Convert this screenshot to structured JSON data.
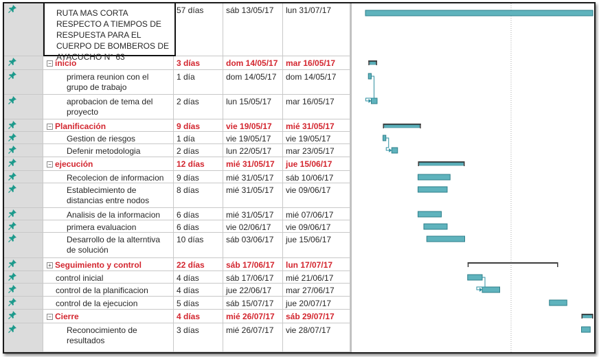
{
  "tasks": [
    {
      "name": "RUTA MAS CORTA RESPECTO A TIEMPOS  DE RESPUESTA  PARA EL CUERPO  DE BOMBEROS DE AYACUCHO N° 63",
      "duration": "57 días",
      "start": "sáb 13/05/17",
      "end": "lun 31/07/17",
      "type": "project",
      "level": 0
    },
    {
      "name": "inicio",
      "duration": "3 días",
      "start": "dom 14/05/17",
      "end": "mar 16/05/17",
      "type": "summary",
      "toggle": "−",
      "level": 0
    },
    {
      "name": "primera reunion con el grupo de trabajo",
      "duration": "1 día",
      "start": "dom 14/05/17",
      "end": "dom 14/05/17",
      "type": "task",
      "level": 1
    },
    {
      "name": "aprobacion de tema del proyecto",
      "duration": "2 días",
      "start": "lun 15/05/17",
      "end": "mar 16/05/17",
      "type": "task",
      "level": 1
    },
    {
      "name": "Planificación",
      "duration": "9 días",
      "start": "vie 19/05/17",
      "end": "mié 31/05/17",
      "type": "summary",
      "toggle": "−",
      "level": 0
    },
    {
      "name": "Gestion de riesgos",
      "duration": "1 día",
      "start": "vie 19/05/17",
      "end": "vie 19/05/17",
      "type": "task",
      "level": 1
    },
    {
      "name": "Defenir metodologia",
      "duration": "2 días",
      "start": "lun 22/05/17",
      "end": "mar 23/05/17",
      "type": "task",
      "level": 1
    },
    {
      "name": "ejecución",
      "duration": "12 días",
      "start": "mié 31/05/17",
      "end": "jue 15/06/17",
      "type": "summary",
      "toggle": "−",
      "level": 0
    },
    {
      "name": "Recolecion de informacion",
      "duration": "9 días",
      "start": "mié 31/05/17",
      "end": "sáb 10/06/17",
      "type": "task",
      "level": 1
    },
    {
      "name": "Establecimiento de distancias entre nodos",
      "duration": "8 días",
      "start": "mié 31/05/17",
      "end": "vie 09/06/17",
      "type": "task",
      "level": 1
    },
    {
      "name": "Analisis de la informacion",
      "duration": "6 días",
      "start": "mié 31/05/17",
      "end": "mié 07/06/17",
      "type": "task",
      "level": 1
    },
    {
      "name": "primera evaluacion",
      "duration": "6 días",
      "start": "vie 02/06/17",
      "end": "vie 09/06/17",
      "type": "task",
      "level": 1
    },
    {
      "name": "Desarrollo de la alterntiva de solución",
      "duration": "10 días",
      "start": "sáb 03/06/17",
      "end": "jue 15/06/17",
      "type": "task",
      "level": 1
    },
    {
      "name": "Seguimiento y control",
      "duration": "22 días",
      "start": "sáb 17/06/17",
      "end": "lun 17/07/17",
      "type": "summary",
      "toggle": "+",
      "level": 0
    },
    {
      "name": "control inicial",
      "duration": "4 días",
      "start": "sáb 17/06/17",
      "end": "mié 21/06/17",
      "type": "task",
      "level": 0
    },
    {
      "name": "control de la planificacion",
      "duration": "4 días",
      "start": "jue 22/06/17",
      "end": "mar 27/06/17",
      "type": "task",
      "level": 0
    },
    {
      "name": "control de la ejecucion",
      "duration": "5 días",
      "start": "sáb 15/07/17",
      "end": "jue 20/07/17",
      "type": "task",
      "level": 0
    },
    {
      "name": "Cierre",
      "duration": "4 días",
      "start": "mié 26/07/17",
      "end": "sáb 29/07/17",
      "type": "summary",
      "toggle": "−",
      "level": 0
    },
    {
      "name": "Reconocimiento de resultados",
      "duration": "3 días",
      "start": "mié 26/07/17",
      "end": "vie 28/07/17",
      "type": "task",
      "level": 1
    }
  ],
  "colors": {
    "summary_text": "#d3262f",
    "bar_fill": "#5fb3bd",
    "bar_border": "#2e7f8a",
    "summary_bar": "#3c3c3c",
    "pin": "#1d9a8c",
    "link": "#2e8fa0"
  }
}
